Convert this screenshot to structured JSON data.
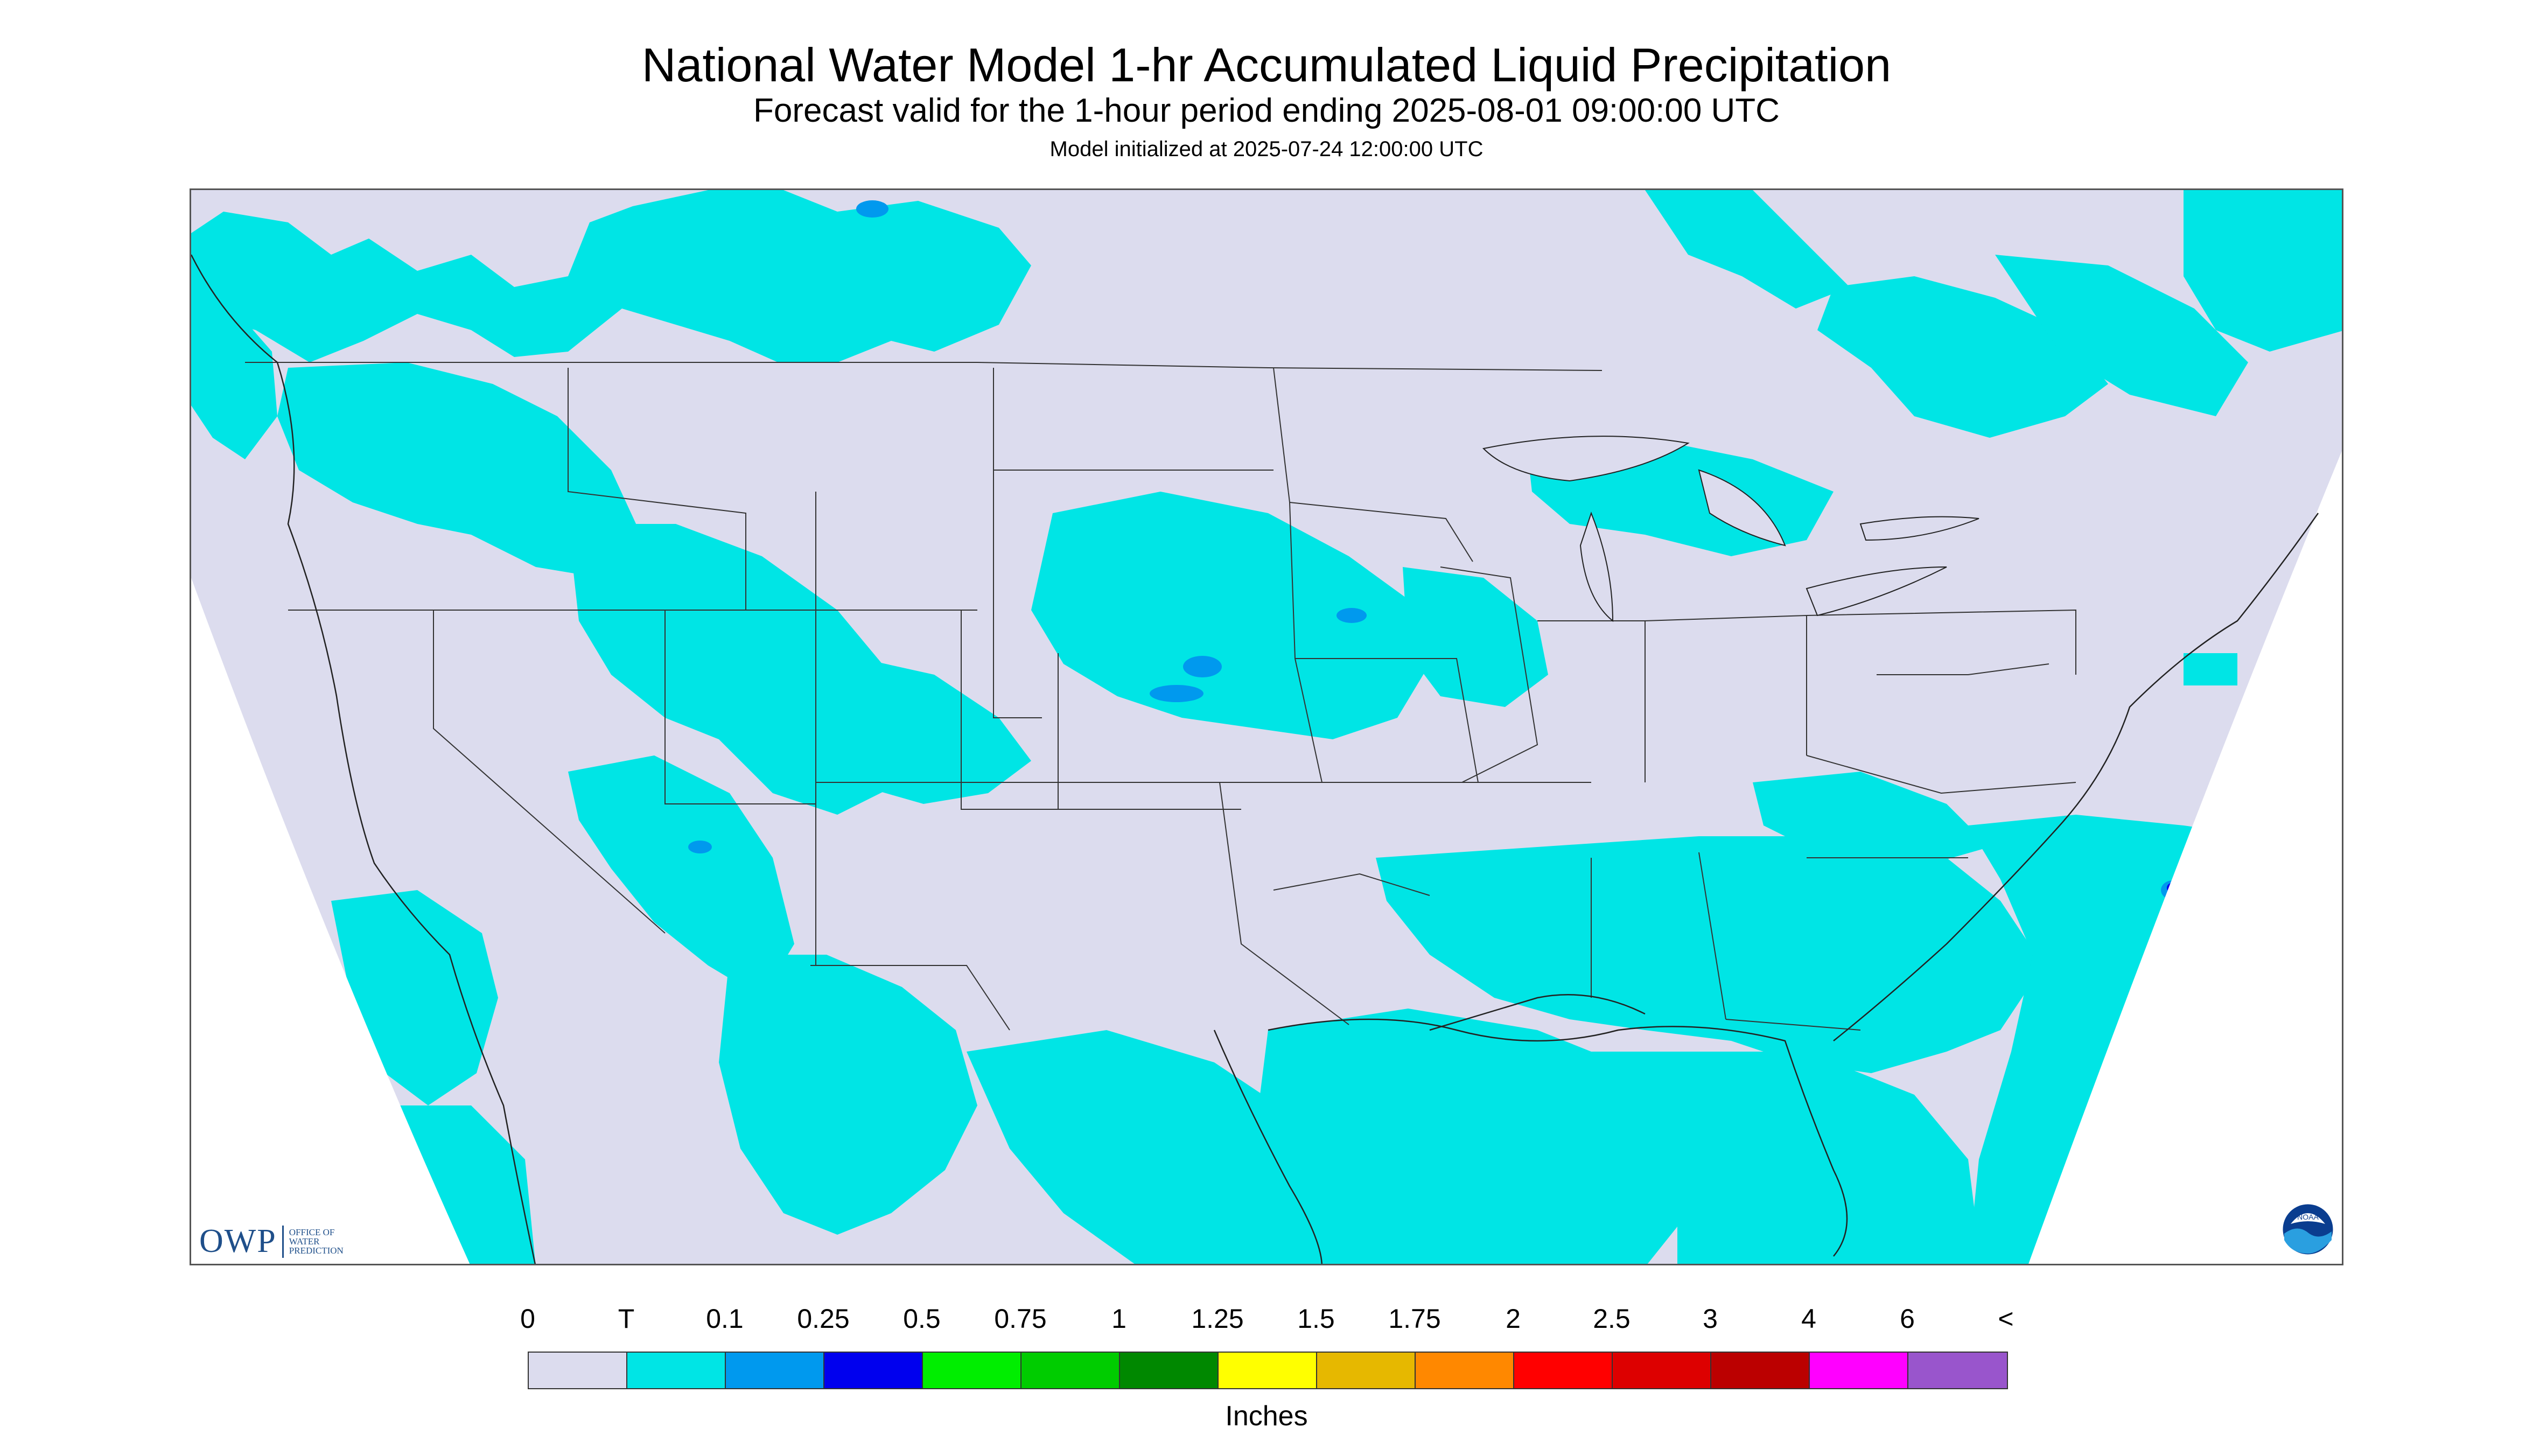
{
  "header": {
    "title": "National Water Model 1-hr Accumulated Liquid Precipitation",
    "subtitle": "Forecast valid for the 1-hour period ending 2025-08-01 09:00:00 UTC",
    "init": "Model initialized at 2025-07-24 12:00:00 UTC"
  },
  "logos": {
    "owp_letters": "OWP",
    "owp_line1": "OFFICE OF",
    "owp_line2": "WATER",
    "owp_line3": "PREDICTION",
    "noaa": "NOAA"
  },
  "colors": {
    "background": "#dcdcee",
    "trace": "#00e5e5",
    "light_blue": "#0099ee",
    "blue": "#0000ee",
    "green": "#00ee00",
    "border": "#333333"
  },
  "legend": {
    "labels": [
      "0",
      "T",
      "0.1",
      "0.25",
      "0.5",
      "0.75",
      "1",
      "1.25",
      "1.5",
      "1.75",
      "2",
      "2.5",
      "3",
      "4",
      "6",
      "<"
    ],
    "swatches": [
      "#dcdcee",
      "#00e5e5",
      "#0099ee",
      "#0000ee",
      "#00ee00",
      "#00cc00",
      "#008800",
      "#ffff00",
      "#e6b800",
      "#ff8800",
      "#ff0000",
      "#dd0000",
      "#bb0000",
      "#ff00ff",
      "#9955cc"
    ],
    "units": "Inches"
  }
}
